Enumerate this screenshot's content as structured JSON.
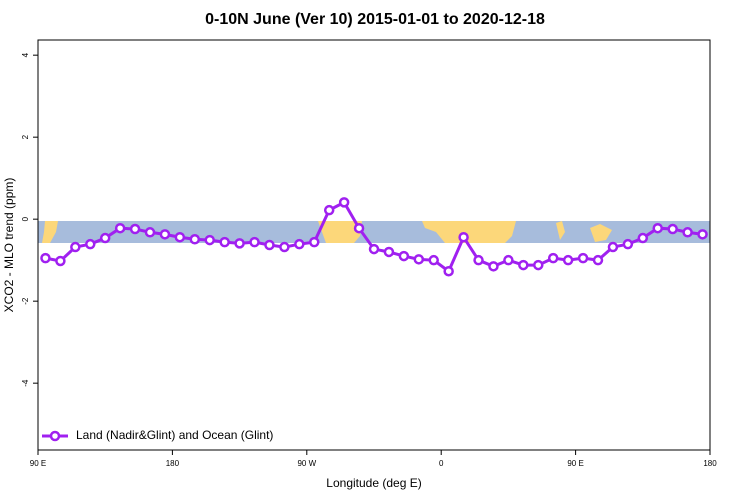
{
  "chart_data": {
    "type": "line",
    "title": "0-10N June (Ver 10)   2015-01-01 to 2020-12-18",
    "x_label": "Longitude (deg E)",
    "y_label": "XCO2 - MLO trend (ppm)",
    "xlim": [
      90,
      540
    ],
    "ylim": [
      -5.63,
      4.37
    ],
    "xticks": [
      {
        "value": 90,
        "label": "90 E"
      },
      {
        "value": 180,
        "label": "180"
      },
      {
        "value": 270,
        "label": "90 W"
      },
      {
        "value": 360,
        "label": "0"
      },
      {
        "value": 450,
        "label": "90 E"
      },
      {
        "value": 540,
        "label": "180"
      }
    ],
    "yticks": [
      4,
      2,
      0,
      -2,
      -4
    ],
    "legend": "bottom-left",
    "series": [
      {
        "name": "Land (Nadir&Glint) and Ocean (Glint)",
        "color": "#a020f0",
        "x": [
          95,
          105,
          115,
          125,
          135,
          145,
          155,
          165,
          175,
          185,
          195,
          205,
          215,
          225,
          235,
          245,
          255,
          265,
          275,
          285,
          295,
          305,
          315,
          325,
          335,
          345,
          355,
          365,
          375,
          385,
          395,
          405,
          415,
          425,
          435,
          445,
          455,
          465,
          475,
          485,
          495,
          505,
          515,
          525,
          535
        ],
        "values": [
          -0.95,
          -1.02,
          -0.68,
          -0.61,
          -0.46,
          -0.22,
          -0.24,
          -0.32,
          -0.37,
          -0.44,
          -0.49,
          -0.51,
          -0.56,
          -0.59,
          -0.56,
          -0.63,
          -0.68,
          -0.61,
          -0.56,
          0.22,
          0.41,
          -0.22,
          -0.73,
          -0.8,
          -0.9,
          -0.98,
          -1.0,
          -1.27,
          -0.44,
          -1.0,
          -1.15,
          -1.0,
          -1.12,
          -1.12,
          -0.95,
          -1.0,
          -0.95,
          -1.0,
          -0.68,
          -0.61,
          -0.46,
          -0.22,
          -0.24,
          -0.32,
          -0.37
        ]
      }
    ]
  }
}
